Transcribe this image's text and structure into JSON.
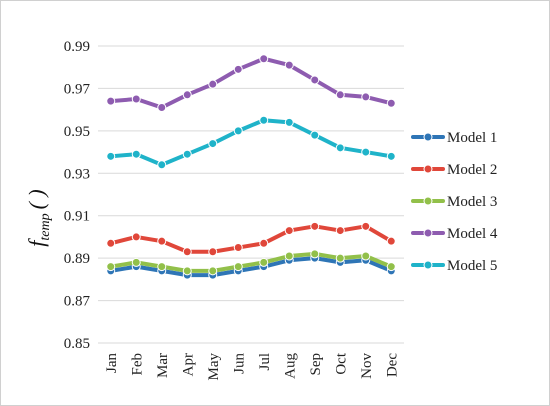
{
  "chart_data": {
    "type": "line",
    "title": "",
    "xlabel": "",
    "ylabel": {
      "main": "f",
      "sub": "temp",
      "suffix": "( )"
    },
    "ylim": [
      0.85,
      0.99
    ],
    "yticks": [
      "0.85",
      "0.87",
      "0.89",
      "0.91",
      "0.93",
      "0.95",
      "0.97",
      "0.99"
    ],
    "grid": "horizontal",
    "legend": "right",
    "categories": [
      "Jan",
      "Feb",
      "Mar",
      "Apr",
      "May",
      "Jun",
      "Jul",
      "Aug",
      "Sep",
      "Oct",
      "Nov",
      "Dec"
    ],
    "series": [
      {
        "name": "Model 1",
        "color": "#2e75b6",
        "values": [
          0.884,
          0.886,
          0.884,
          0.882,
          0.882,
          0.884,
          0.886,
          0.889,
          0.89,
          0.888,
          0.889,
          0.884
        ]
      },
      {
        "name": "Model 2",
        "color": "#e0473a",
        "values": [
          0.897,
          0.9,
          0.898,
          0.893,
          0.893,
          0.895,
          0.897,
          0.903,
          0.905,
          0.903,
          0.905,
          0.898
        ]
      },
      {
        "name": "Model 3",
        "color": "#92c04a",
        "values": [
          0.886,
          0.888,
          0.886,
          0.884,
          0.884,
          0.886,
          0.888,
          0.891,
          0.892,
          0.89,
          0.891,
          0.886
        ]
      },
      {
        "name": "Model 4",
        "color": "#8e5cb0",
        "values": [
          0.964,
          0.965,
          0.961,
          0.967,
          0.972,
          0.979,
          0.984,
          0.981,
          0.974,
          0.967,
          0.966,
          0.963
        ]
      },
      {
        "name": "Model 5",
        "color": "#1fb3c9",
        "values": [
          0.938,
          0.939,
          0.934,
          0.939,
          0.944,
          0.95,
          0.955,
          0.954,
          0.948,
          0.942,
          0.94,
          0.938
        ]
      }
    ]
  }
}
